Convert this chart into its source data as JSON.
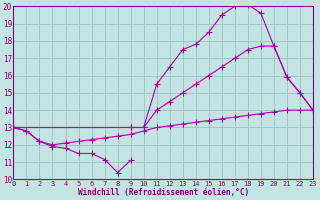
{
  "xlabel": "Windchill (Refroidissement éolien,°C)",
  "xlim": [
    0,
    23
  ],
  "ylim": [
    10,
    20
  ],
  "yticks": [
    10,
    11,
    12,
    13,
    14,
    15,
    16,
    17,
    18,
    19,
    20
  ],
  "xticks": [
    0,
    1,
    2,
    3,
    4,
    5,
    6,
    7,
    8,
    9,
    10,
    11,
    12,
    13,
    14,
    15,
    16,
    17,
    18,
    19,
    20,
    21,
    22,
    23
  ],
  "bg_color": "#c4e4e4",
  "grid_color": "#a0c8c8",
  "line_color": "#aa00aa",
  "curves": [
    {
      "x": [
        0,
        1,
        2,
        3,
        4,
        5,
        6,
        7,
        8,
        9
      ],
      "y": [
        13.0,
        12.8,
        12.2,
        11.9,
        11.8,
        11.5,
        11.5,
        11.15,
        10.4,
        11.1
      ]
    },
    {
      "x": [
        0,
        1,
        2,
        3,
        4,
        5,
        6,
        7,
        8,
        9,
        10,
        11,
        12,
        13,
        14,
        15,
        16,
        17,
        18,
        19,
        20,
        21,
        22,
        23
      ],
      "y": [
        13.0,
        12.8,
        12.2,
        12.0,
        12.1,
        12.2,
        12.3,
        12.4,
        12.5,
        12.6,
        12.8,
        13.0,
        13.1,
        13.2,
        13.3,
        13.4,
        13.5,
        13.6,
        13.7,
        13.8,
        13.9,
        14.0,
        14.0,
        14.0
      ]
    },
    {
      "x": [
        0,
        9,
        10,
        11,
        12,
        13,
        14,
        15,
        16,
        17,
        18,
        19,
        20,
        21,
        22,
        23
      ],
      "y": [
        13.0,
        13.0,
        13.0,
        15.5,
        16.5,
        17.5,
        17.8,
        18.5,
        19.5,
        20.0,
        20.1,
        19.6,
        17.7,
        15.9,
        15.0,
        14.0
      ]
    },
    {
      "x": [
        0,
        9,
        10,
        11,
        12,
        13,
        14,
        15,
        16,
        17,
        18,
        19,
        20,
        21,
        22,
        23
      ],
      "y": [
        13.0,
        13.0,
        13.0,
        14.0,
        14.5,
        15.0,
        15.5,
        16.0,
        16.5,
        17.0,
        17.5,
        17.7,
        17.7,
        15.9,
        15.0,
        14.0
      ]
    }
  ]
}
